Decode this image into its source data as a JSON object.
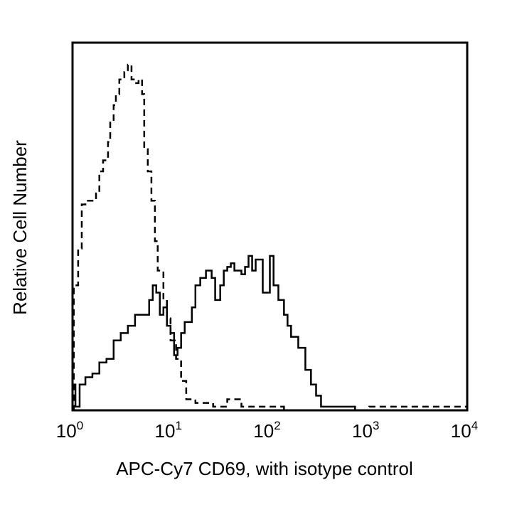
{
  "chart_data": {
    "type": "line",
    "title": "",
    "xlabel": "APC-Cy7 CD69, with isotype control",
    "ylabel": "Relative Cell Number",
    "xscale": "log",
    "xlim": [
      1,
      10000
    ],
    "ylim": [
      0,
      100
    ],
    "grid": false,
    "legend": "none",
    "x_ticks": [
      {
        "base": "10",
        "exp": "0",
        "value": 1
      },
      {
        "base": "10",
        "exp": "1",
        "value": 10
      },
      {
        "base": "10",
        "exp": "2",
        "value": 100
      },
      {
        "base": "10",
        "exp": "3",
        "value": 1000
      },
      {
        "base": "10",
        "exp": "4",
        "value": 10000
      }
    ],
    "series": [
      {
        "style": "dashed",
        "color": "#000000",
        "x": [
          1,
          1.03,
          1.14,
          1.24,
          1.35,
          1.73,
          1.87,
          2.04,
          2.29,
          2.41,
          2.61,
          2.75,
          2.98,
          3.35,
          3.64,
          3.96,
          4.3,
          4.67,
          5.07,
          5.33,
          5.79,
          6.3,
          6.84,
          7.3,
          8.34,
          9.05,
          9.85,
          11.2,
          12.6,
          14.2,
          17.6,
          26.6,
          37,
          51.5,
          84.7,
          139,
          319,
          1016,
          3243,
          10000
        ],
        "y": [
          0,
          34,
          44,
          56,
          57,
          59,
          65,
          68,
          73,
          79,
          83,
          86,
          90,
          92,
          94,
          90,
          89,
          90,
          86,
          71,
          65,
          57,
          46,
          38,
          30,
          25,
          19,
          14,
          8,
          3,
          2,
          1,
          3,
          1,
          1,
          0,
          0,
          1,
          1,
          0
        ]
      },
      {
        "style": "solid",
        "color": "#000000",
        "x": [
          1,
          1.07,
          1.18,
          1.35,
          1.59,
          1.87,
          2.21,
          2.61,
          3.08,
          3.64,
          4.3,
          5.07,
          5.98,
          6.5,
          7.06,
          7.67,
          8.34,
          9.05,
          9.85,
          10.7,
          11.6,
          12.6,
          13.7,
          16.2,
          17.6,
          19.7,
          22.5,
          25.7,
          27.9,
          31.4,
          34.1,
          37.0,
          40.2,
          43.7,
          51.5,
          56.0,
          60.8,
          66.1,
          71.8,
          84.7,
          100,
          109,
          122,
          139,
          151,
          164,
          194,
          211,
          229,
          261,
          294,
          330,
          444,
          730,
          10000
        ],
        "y": [
          7,
          1,
          7,
          9,
          10,
          13,
          14,
          19,
          21,
          23,
          26,
          26,
          30,
          34,
          32,
          26,
          28,
          23,
          21,
          15,
          17,
          21,
          24,
          28,
          34,
          36,
          38,
          36,
          30,
          34,
          38,
          39,
          40,
          38,
          37,
          39,
          42,
          38,
          41,
          32,
          42,
          34,
          30,
          26,
          23,
          20,
          17,
          17,
          11,
          7,
          4,
          1,
          1,
          0,
          0
        ]
      }
    ]
  }
}
